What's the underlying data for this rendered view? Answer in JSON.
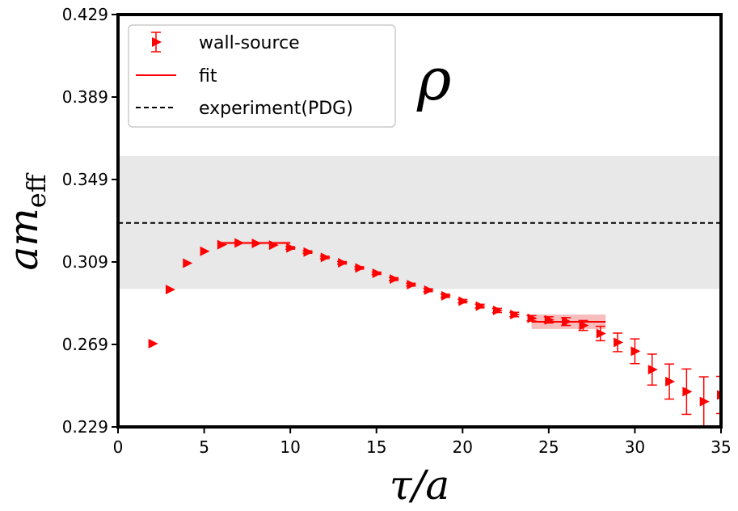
{
  "chart_data": {
    "type": "scatter",
    "title": "ρ",
    "xlabel": "τ/a",
    "ylabel": "am",
    "ylabel_subscript": "eff",
    "xlim": [
      0,
      35
    ],
    "ylim": [
      0.229,
      0.429
    ],
    "xticks": [
      0,
      5,
      10,
      15,
      20,
      25,
      30,
      35
    ],
    "xtick_labels": [
      "0",
      "5",
      "10",
      "15",
      "20",
      "25",
      "30",
      "35"
    ],
    "yticks": [
      0.229,
      0.269,
      0.309,
      0.349,
      0.389,
      0.429
    ],
    "ytick_labels": [
      "0.229",
      "0.269",
      "0.309",
      "0.349",
      "0.389",
      "0.429"
    ],
    "grid": false,
    "legend_position": "top-left",
    "legend": [
      "wall-source",
      "fit",
      "experiment(PDG)"
    ],
    "colors": {
      "data": "#ff0000",
      "fit": "#ff0000",
      "fit_band": "#f4a6a6",
      "experiment": "#000000",
      "experiment_band": "#e8e8e8",
      "frame": "#000000"
    },
    "series": [
      {
        "name": "wall-source",
        "marker": "triangle-right",
        "x": [
          2,
          3,
          4,
          5,
          6,
          7,
          8,
          9,
          10,
          11,
          12,
          13,
          14,
          15,
          16,
          17,
          18,
          19,
          20,
          21,
          22,
          23,
          24,
          25,
          26,
          27,
          28,
          29,
          30,
          31,
          32,
          33,
          34,
          35
        ],
        "y": [
          0.2694,
          0.2956,
          0.3084,
          0.3142,
          0.3174,
          0.3182,
          0.318,
          0.3172,
          0.3158,
          0.3138,
          0.3112,
          0.3086,
          0.3061,
          0.3035,
          0.3007,
          0.298,
          0.2953,
          0.2926,
          0.29,
          0.2876,
          0.2855,
          0.2835,
          0.2817,
          0.2809,
          0.2801,
          0.2782,
          0.2743,
          0.27,
          0.2657,
          0.2568,
          0.251,
          0.2461,
          0.2413,
          0.2445
        ],
        "yerr": [
          0.0005,
          0.0005,
          0.0005,
          0.0005,
          0.0005,
          0.0005,
          0.0005,
          0.0005,
          0.0006,
          0.0006,
          0.0006,
          0.0006,
          0.0006,
          0.0006,
          0.0007,
          0.0007,
          0.0007,
          0.0008,
          0.0008,
          0.0009,
          0.001,
          0.0011,
          0.0013,
          0.0015,
          0.0019,
          0.0024,
          0.0035,
          0.0045,
          0.006,
          0.0075,
          0.0085,
          0.011,
          0.012,
          0.009
        ]
      }
    ],
    "fits": [
      {
        "name": "fit",
        "x_range": [
          6,
          10
        ],
        "value": 0.3182,
        "err": 0.0007
      },
      {
        "name": "fit",
        "x_range": [
          24,
          28.3
        ],
        "value": 0.28,
        "err": 0.0035
      }
    ],
    "experiment": {
      "name": "experiment(PDG)",
      "value": 0.3279,
      "band": [
        0.2959,
        0.3604
      ]
    }
  }
}
